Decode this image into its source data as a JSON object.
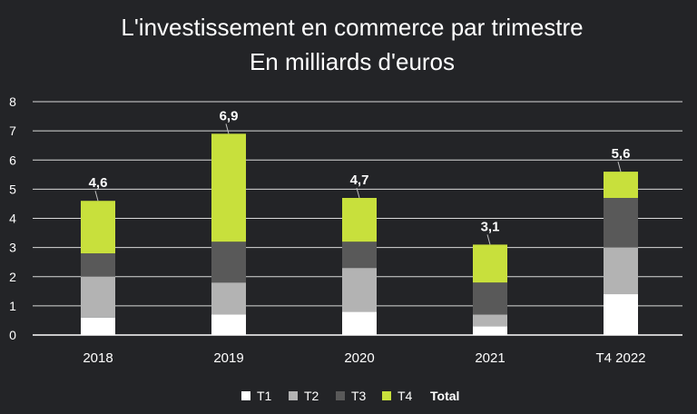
{
  "chart_data": {
    "type": "bar",
    "stacked": true,
    "title": "L'investissement en commerce par trimestre",
    "subtitle": "En milliards d'euros",
    "categories": [
      "2018",
      "2019",
      "2020",
      "2021",
      "T4 2022"
    ],
    "series": [
      {
        "name": "T1",
        "values": [
          0.6,
          0.7,
          0.8,
          0.3,
          1.4
        ],
        "color": "#ffffff"
      },
      {
        "name": "T2",
        "values": [
          1.4,
          1.1,
          1.5,
          0.4,
          1.6
        ],
        "color": "#b3b3b3"
      },
      {
        "name": "T3",
        "values": [
          0.8,
          1.4,
          0.9,
          1.1,
          1.7
        ],
        "color": "#595959"
      },
      {
        "name": "T4",
        "values": [
          1.8,
          3.7,
          1.5,
          1.3,
          0.9
        ],
        "color": "#c8e03c"
      }
    ],
    "totals": {
      "name": "Total",
      "labels": [
        "4,6",
        "6,9",
        "4,7",
        "3,1",
        "5,6"
      ],
      "values": [
        4.6,
        6.9,
        4.7,
        3.1,
        5.6
      ]
    },
    "ylim": [
      0,
      8
    ],
    "yticks": [
      0,
      1,
      2,
      3,
      4,
      5,
      6,
      7,
      8
    ],
    "grid": true,
    "legend": "bottom",
    "colors": {
      "background": "#232427",
      "text": "#ffffff",
      "grid": "#d9d9d9"
    }
  }
}
